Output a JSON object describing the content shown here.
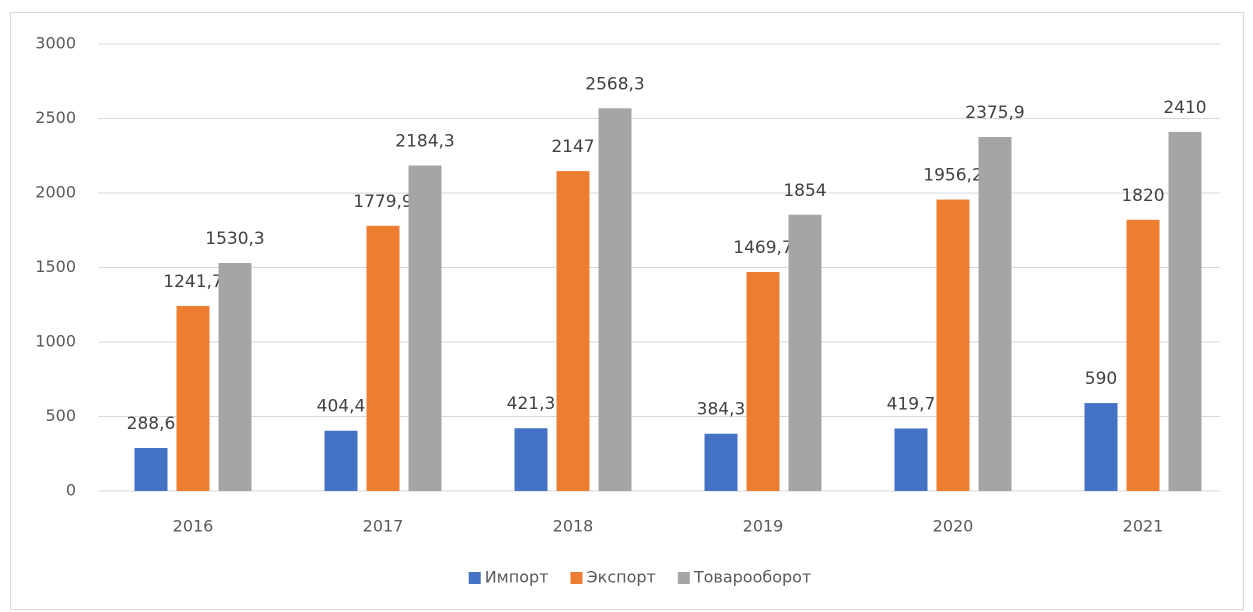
{
  "chart_data": {
    "type": "bar",
    "categories": [
      "2016",
      "2017",
      "2018",
      "2019",
      "2020",
      "2021"
    ],
    "series": [
      {
        "name": "Импорт",
        "color": "#4472c4",
        "values": [
          288.6,
          404.4,
          421.3,
          384.3,
          419.7,
          590
        ],
        "value_labels": [
          "288,6",
          "404,4",
          "421,3",
          "384,3",
          "419,7",
          "590"
        ]
      },
      {
        "name": "Экспорт",
        "color": "#ed7d31",
        "values": [
          1241.7,
          1779.9,
          2147,
          1469.7,
          1956.2,
          1820
        ],
        "value_labels": [
          "1241,7",
          "1779,9",
          "2147",
          "1469,7",
          "1956,2",
          "1820"
        ]
      },
      {
        "name": "Товарооборот",
        "color": "#a5a5a5",
        "values": [
          1530.3,
          2184.3,
          2568.3,
          1854,
          2375.9,
          2410
        ],
        "value_labels": [
          "1530,3",
          "2184,3",
          "2568,3",
          "1854",
          "2375,9",
          "2410"
        ]
      }
    ],
    "ylim": [
      0,
      3000
    ],
    "yticks": [
      0,
      500,
      1000,
      1500,
      2000,
      2500,
      3000
    ],
    "grid": true,
    "legend": "bottom"
  }
}
